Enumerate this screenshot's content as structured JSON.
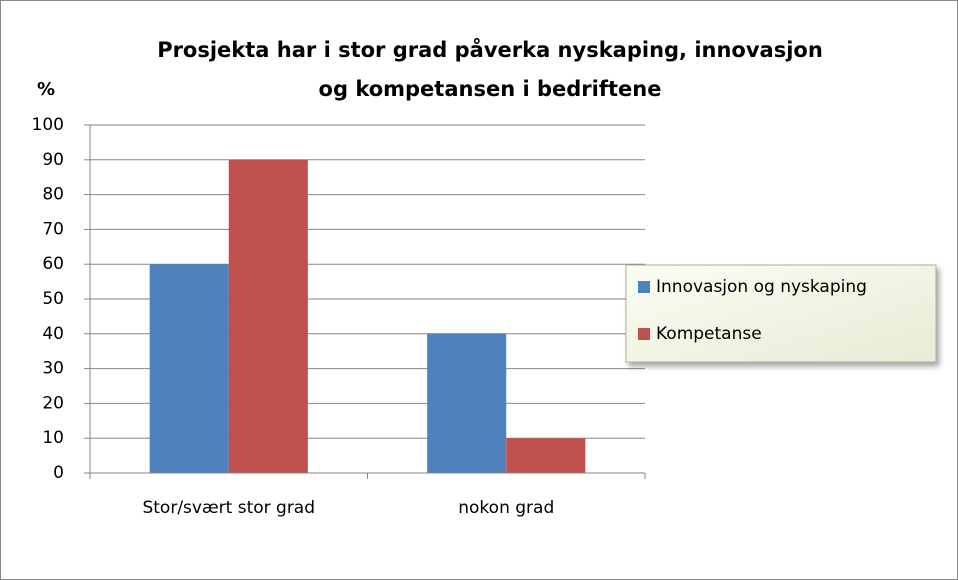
{
  "chart_data": {
    "type": "bar",
    "title": [
      "Prosjekta har i stor grad påverka nyskaping, innovasjon",
      "og kompetansen i bedriftene"
    ],
    "y_label": "%",
    "categories": [
      "Stor/svært stor grad",
      "nokon grad"
    ],
    "series": [
      {
        "name": "Innovasjon og nyskaping",
        "color": "#4f81bd",
        "values": [
          60,
          40
        ]
      },
      {
        "name": "Kompetanse",
        "color": "#c0504d",
        "values": [
          90,
          10
        ]
      }
    ],
    "ylim": [
      0,
      100
    ],
    "yticks": [
      0,
      10,
      20,
      30,
      40,
      50,
      60,
      70,
      80,
      90,
      100
    ],
    "grid": true,
    "legend": "right"
  }
}
